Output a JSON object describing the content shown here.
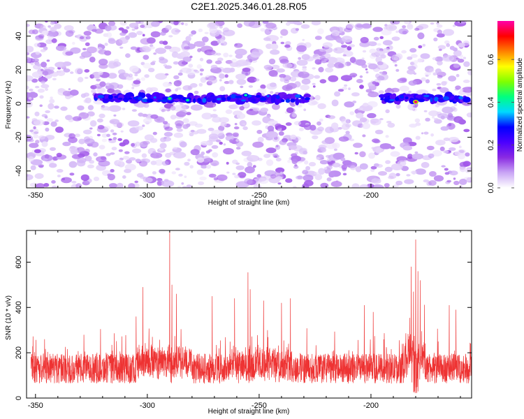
{
  "title": "C2E1.2025.346.01.28.R05",
  "spectrogram": {
    "type": "heatmap",
    "xlabel": "Height of straight line (km)",
    "ylabel": "Frequency (Hz)",
    "xlim": [
      -354,
      -155
    ],
    "ylim": [
      -50,
      49
    ],
    "xticks": [
      -350,
      -300,
      -250,
      -200
    ],
    "yticks": [
      -40,
      -20,
      0,
      20,
      40
    ],
    "xtick_labels": [
      "-350",
      "-300",
      "-250",
      "-200"
    ],
    "ytick_labels": [
      "-40",
      "-20",
      "0",
      "20",
      "40"
    ],
    "band_frequency_hz": 3,
    "band_segments": [
      [
        -323,
        -228
      ],
      [
        -195,
        -157
      ]
    ],
    "band_gap": [
      -228,
      -195
    ],
    "peaks": [
      {
        "x": -290,
        "f": 3,
        "amp": 0.45
      },
      {
        "x": -282,
        "f": 2,
        "amp": 0.42
      },
      {
        "x": -256,
        "f": 5,
        "amp": 0.4
      },
      {
        "x": -180,
        "f": 1,
        "amp": 0.75
      }
    ],
    "colorbar": {
      "label": "Normalized spectral amplitude",
      "range": [
        0,
        0.78
      ],
      "ticks": [
        0,
        0.2,
        0.4,
        0.6
      ],
      "tick_labels": [
        "0.0",
        "0.2",
        "0.4",
        "0.6"
      ],
      "colors": [
        "#ffffff",
        "#c9a5f5",
        "#8a2be2",
        "#4b00ff",
        "#0000ff",
        "#00d9ff",
        "#00ff80",
        "#7fff00",
        "#ffff00",
        "#ff8000",
        "#ff0000",
        "#ff00aa"
      ]
    }
  },
  "snr": {
    "type": "line",
    "xlabel": "Height of straight line (km)",
    "ylabel": "SNR (10 * v/v)",
    "xlim": [
      -354,
      -155
    ],
    "ylim": [
      0,
      740
    ],
    "xticks": [
      -350,
      -300,
      -250,
      -200
    ],
    "yticks": [
      0,
      200,
      400,
      600
    ],
    "xtick_labels": [
      "-350",
      "-300",
      "-250",
      "-200"
    ],
    "ytick_labels": [
      "0",
      "200",
      "400",
      "600"
    ],
    "baseline": 130,
    "noise_range": [
      40,
      280
    ],
    "color": "#ee3333",
    "peaks": [
      {
        "x": -290,
        "y": 740
      },
      {
        "x": -289,
        "y": 500
      },
      {
        "x": -302,
        "y": 490
      },
      {
        "x": -305,
        "y": 360
      },
      {
        "x": -287,
        "y": 460
      },
      {
        "x": -271,
        "y": 450
      },
      {
        "x": -255,
        "y": 555
      },
      {
        "x": -254,
        "y": 480
      },
      {
        "x": -261,
        "y": 440
      },
      {
        "x": -248,
        "y": 430
      },
      {
        "x": -240,
        "y": 420
      },
      {
        "x": -236,
        "y": 440
      },
      {
        "x": -203,
        "y": 410
      },
      {
        "x": -199,
        "y": 380
      },
      {
        "x": -182,
        "y": 580
      },
      {
        "x": -181,
        "y": 470
      },
      {
        "x": -180,
        "y": 700
      },
      {
        "x": -179,
        "y": 560
      },
      {
        "x": -178,
        "y": 520
      },
      {
        "x": -165,
        "y": 410
      },
      {
        "x": -162,
        "y": 390
      }
    ]
  }
}
